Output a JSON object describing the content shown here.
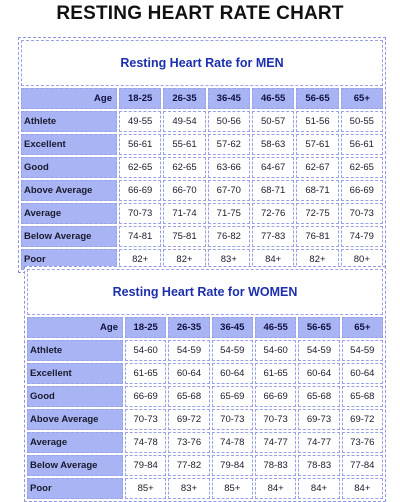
{
  "title": "RESTING HEART RATE CHART",
  "colors": {
    "header_bg": "#a8b4f3",
    "caption_text": "#1c2fae",
    "cell_border": "#9aa2e6"
  },
  "tables": [
    {
      "caption": "Resting Heart Rate for MEN",
      "age_label": "Age",
      "age_groups": [
        "18-25",
        "26-35",
        "36-45",
        "46-55",
        "56-65",
        "65+"
      ],
      "rows": [
        {
          "label": "Athlete",
          "values": [
            "49-55",
            "49-54",
            "50-56",
            "50-57",
            "51-56",
            "50-55"
          ]
        },
        {
          "label": "Excellent",
          "values": [
            "56-61",
            "55-61",
            "57-62",
            "58-63",
            "57-61",
            "56-61"
          ]
        },
        {
          "label": "Good",
          "values": [
            "62-65",
            "62-65",
            "63-66",
            "64-67",
            "62-67",
            "62-65"
          ]
        },
        {
          "label": "Above Average",
          "values": [
            "66-69",
            "66-70",
            "67-70",
            "68-71",
            "68-71",
            "66-69"
          ]
        },
        {
          "label": "Average",
          "values": [
            "70-73",
            "71-74",
            "71-75",
            "72-76",
            "72-75",
            "70-73"
          ]
        },
        {
          "label": "Below Average",
          "values": [
            "74-81",
            "75-81",
            "76-82",
            "77-83",
            "76-81",
            "74-79"
          ]
        },
        {
          "label": "Poor",
          "values": [
            "82+",
            "82+",
            "83+",
            "84+",
            "82+",
            "80+"
          ]
        }
      ]
    },
    {
      "caption": "Resting Heart Rate for WOMEN",
      "age_label": "Age",
      "age_groups": [
        "18-25",
        "26-35",
        "36-45",
        "46-55",
        "56-65",
        "65+"
      ],
      "rows": [
        {
          "label": "Athlete",
          "values": [
            "54-60",
            "54-59",
            "54-59",
            "54-60",
            "54-59",
            "54-59"
          ]
        },
        {
          "label": "Excellent",
          "values": [
            "61-65",
            "60-64",
            "60-64",
            "61-65",
            "60-64",
            "60-64"
          ]
        },
        {
          "label": "Good",
          "values": [
            "66-69",
            "65-68",
            "65-69",
            "66-69",
            "65-68",
            "65-68"
          ]
        },
        {
          "label": "Above Average",
          "values": [
            "70-73",
            "69-72",
            "70-73",
            "70-73",
            "69-73",
            "69-72"
          ]
        },
        {
          "label": "Average",
          "values": [
            "74-78",
            "73-76",
            "74-78",
            "74-77",
            "74-77",
            "73-76"
          ]
        },
        {
          "label": "Below Average",
          "values": [
            "79-84",
            "77-82",
            "79-84",
            "78-83",
            "78-83",
            "77-84"
          ]
        },
        {
          "label": "Poor",
          "values": [
            "85+",
            "83+",
            "85+",
            "84+",
            "84+",
            "84+"
          ]
        }
      ]
    }
  ]
}
